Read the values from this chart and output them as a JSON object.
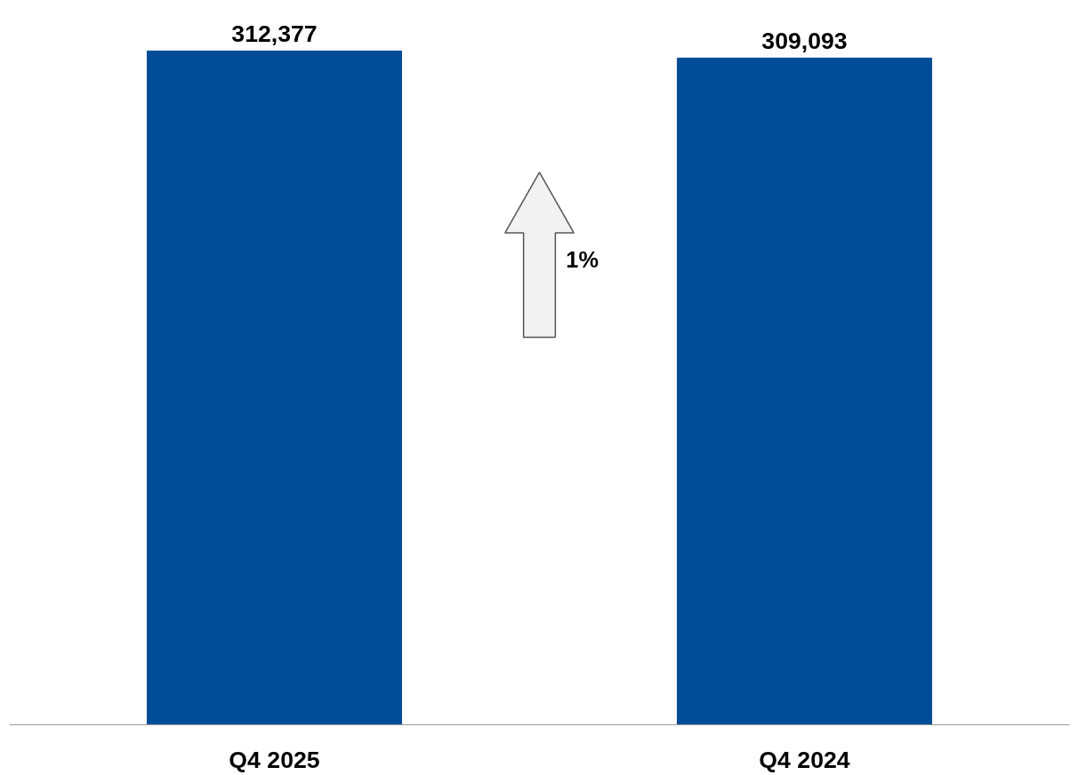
{
  "chart_data": {
    "type": "bar",
    "categories": [
      "Q4 2025",
      "Q4 2024"
    ],
    "values": [
      312377,
      309093
    ],
    "value_labels": [
      "312,377",
      "309,093"
    ],
    "color": "#004c97",
    "grid": false,
    "annotations": [
      "1%"
    ]
  }
}
